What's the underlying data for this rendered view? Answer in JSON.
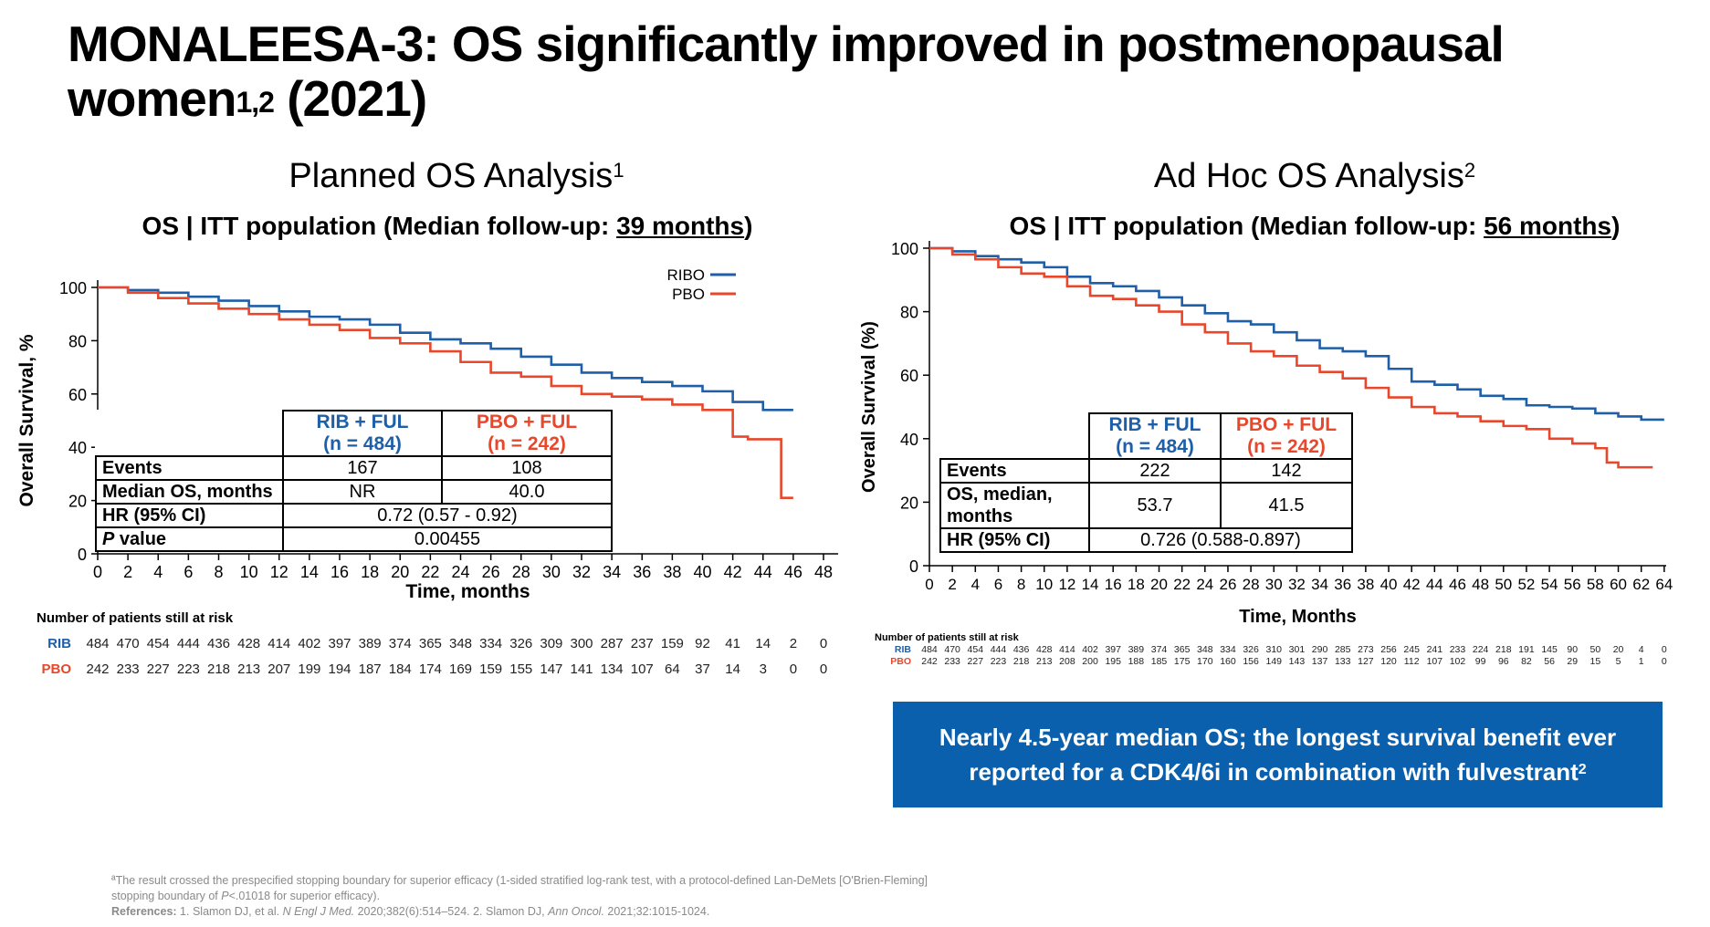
{
  "slide": {
    "title_main": "MONALEESA-3: OS significantly improved in postmenopausal women",
    "title_sup": "1,2",
    "title_tail": " (2021)"
  },
  "left_panel": {
    "title": "Planned OS Analysis",
    "title_sup": "1",
    "subtitle_pre": "OS  |  ITT population (Median follow-up: ",
    "subtitle_link": "39 months",
    "subtitle_post": ")",
    "table": {
      "col1": "RIB + FUL",
      "col1_n": "(n = 484)",
      "col2": "PBO + FUL",
      "col2_n": "(n = 242)",
      "rows": [
        {
          "label": "Events",
          "v1": "167",
          "v2": "108"
        },
        {
          "label": "Median OS, months",
          "v1": "NR",
          "v2": "40.0"
        }
      ],
      "hr_label": "HR (95% CI)",
      "hr_value": "0.72 (0.57 - 0.92)",
      "p_label_italic": "P",
      "p_label_rest": " value",
      "p_value": "0.00455"
    }
  },
  "right_panel": {
    "title": "Ad Hoc OS Analysis",
    "title_sup": "2",
    "subtitle_pre": "OS  |  ITT population (Median follow-up: ",
    "subtitle_link": "56 months",
    "subtitle_post": ")",
    "table": {
      "col1": "RIB + FUL",
      "col1_n": "(n = 484)",
      "col2": "PBO + FUL",
      "col2_n": "(n = 242)",
      "events_label": "Events",
      "events_v1": "222",
      "events_v2": "142",
      "os_label_1": "OS, median,",
      "os_label_2": "months",
      "os_v1": "53.7",
      "os_v2": "41.5",
      "hr_label": "HR (95% CI)",
      "hr_value": "0.726 (0.588-0.897)"
    }
  },
  "callout": {
    "line1": "Nearly 4.5-year median OS; the longest survival benefit ever",
    "line2": "reported for a CDK4/6i in combination with fulvestrant",
    "sup": "2"
  },
  "footnotes": {
    "line1": "ªThe result crossed the prespecified stopping boundary for superior efficacy (1-sided stratified log-rank test, with a protocol-defined Lan-DeMets [O'Brien-Fleming]",
    "line2_pre": "stopping boundary of ",
    "line2_italic": "P",
    "line2_post": "<.01018 for superior efficacy).",
    "ref_label": "References:",
    "ref1_pre": " 1. Slamon DJ, et al. ",
    "ref1_journal": "N Engl J Med.",
    "ref1_post": " 2020;382(6):514–524. 2. Slamon DJ, ",
    "ref2_journal": "Ann Oncol.",
    "ref2_post": " 2021;32:1015-1024."
  },
  "colors": {
    "ribo": "#1f5fa8",
    "pbo": "#e8472b",
    "callout_bg": "#0a60ad"
  },
  "chart_data": [
    {
      "type": "line",
      "name": "planned-os",
      "xlabel": "Time, months",
      "ylabel": "Overall Survival, %",
      "xlim": [
        0,
        48
      ],
      "ylim": [
        0,
        100
      ],
      "xticks": [
        0,
        2,
        4,
        6,
        8,
        10,
        12,
        14,
        16,
        18,
        20,
        22,
        24,
        26,
        28,
        30,
        32,
        34,
        36,
        38,
        40,
        42,
        44,
        46,
        48
      ],
      "yticks": [
        0,
        20,
        40,
        60,
        80,
        100
      ],
      "legend": [
        "RIBO",
        "PBO"
      ],
      "series": [
        {
          "name": "RIBO",
          "x": [
            0,
            2,
            4,
            6,
            8,
            10,
            12,
            14,
            16,
            18,
            20,
            22,
            24,
            26,
            28,
            30,
            32,
            34,
            36,
            38,
            40,
            42,
            44,
            46
          ],
          "y": [
            100,
            99,
            98,
            96.5,
            95,
            93,
            91,
            89,
            88,
            86,
            83,
            80.5,
            79,
            77,
            74,
            71,
            68,
            66,
            64.5,
            63,
            61,
            57,
            54,
            54
          ]
        },
        {
          "name": "PBO",
          "x": [
            0,
            2,
            4,
            6,
            8,
            10,
            12,
            14,
            16,
            18,
            20,
            22,
            24,
            26,
            28,
            30,
            32,
            34,
            36,
            38,
            40,
            42,
            43,
            44,
            45,
            45.2,
            46
          ],
          "y": [
            100,
            98,
            96,
            94,
            92,
            90,
            88,
            86,
            84,
            81,
            79,
            76,
            72,
            68,
            66.5,
            63,
            60,
            59,
            58,
            56,
            54,
            44,
            43,
            43,
            43,
            21,
            21
          ]
        }
      ],
      "risk_table": {
        "title": "Number of patients still at risk",
        "rows": [
          {
            "label": "RIB",
            "values": [
              "484",
              "470",
              "454",
              "444",
              "436",
              "428",
              "414",
              "402",
              "397",
              "389",
              "374",
              "365",
              "348",
              "334",
              "326",
              "309",
              "300",
              "287",
              "237",
              "159",
              "92",
              "41",
              "14",
              "2",
              "0"
            ]
          },
          {
            "label": "PBO",
            "values": [
              "242",
              "233",
              "227",
              "223",
              "218",
              "213",
              "207",
              "199",
              "194",
              "187",
              "184",
              "174",
              "169",
              "159",
              "155",
              "147",
              "141",
              "134",
              "107",
              "64",
              "37",
              "14",
              "3",
              "0",
              "0"
            ]
          }
        ]
      }
    },
    {
      "type": "line",
      "name": "adhoc-os",
      "xlabel": "Time, Months",
      "ylabel": "Overall Survival (%)",
      "xlim": [
        0,
        66
      ],
      "ylim": [
        0,
        100
      ],
      "xticks": [
        0,
        2,
        4,
        6,
        8,
        10,
        12,
        14,
        16,
        18,
        20,
        22,
        24,
        26,
        28,
        30,
        32,
        34,
        36,
        38,
        40,
        42,
        44,
        46,
        48,
        50,
        52,
        54,
        56,
        58,
        60,
        62,
        64
      ],
      "yticks": [
        0,
        20,
        40,
        60,
        80,
        100
      ],
      "series": [
        {
          "name": "RIB + FUL",
          "x": [
            0,
            2,
            4,
            6,
            8,
            10,
            12,
            14,
            16,
            18,
            20,
            22,
            24,
            26,
            28,
            30,
            32,
            34,
            36,
            38,
            40,
            42,
            44,
            46,
            48,
            50,
            52,
            54,
            56,
            58,
            60,
            62,
            64
          ],
          "y": [
            100,
            99,
            97.5,
            96.5,
            95.5,
            94,
            91,
            89,
            88,
            86.5,
            84.5,
            82,
            79.5,
            77,
            76,
            73.5,
            71,
            68.5,
            67.5,
            66,
            62,
            58,
            57,
            55.5,
            53.5,
            52.5,
            50.5,
            50,
            49.5,
            48,
            47,
            46,
            46
          ]
        },
        {
          "name": "PBO + FUL",
          "x": [
            0,
            2,
            4,
            6,
            8,
            10,
            12,
            14,
            16,
            18,
            20,
            22,
            24,
            26,
            28,
            30,
            32,
            34,
            36,
            38,
            40,
            42,
            44,
            46,
            48,
            50,
            52,
            54,
            56,
            58,
            59,
            60,
            62,
            63
          ],
          "y": [
            100,
            98,
            96.5,
            94,
            92,
            91,
            88,
            85,
            84,
            82,
            80,
            76,
            73.5,
            70,
            67.5,
            66,
            63,
            61,
            59,
            56,
            53,
            50,
            48,
            47,
            45.5,
            44,
            43,
            40,
            38.5,
            37,
            32.5,
            31,
            31,
            31
          ]
        }
      ],
      "risk_table": {
        "title": "Number of patients still at risk",
        "rows": [
          {
            "label": "RIB",
            "values": [
              "484",
              "470",
              "454",
              "444",
              "436",
              "428",
              "414",
              "402",
              "397",
              "389",
              "374",
              "365",
              "348",
              "334",
              "326",
              "310",
              "301",
              "290",
              "285",
              "273",
              "256",
              "245",
              "241",
              "233",
              "224",
              "218",
              "191",
              "145",
              "90",
              "50",
              "20",
              "4",
              "0"
            ]
          },
          {
            "label": "PBO",
            "values": [
              "242",
              "233",
              "227",
              "223",
              "218",
              "213",
              "208",
              "200",
              "195",
              "188",
              "185",
              "175",
              "170",
              "160",
              "156",
              "149",
              "143",
              "137",
              "133",
              "127",
              "120",
              "112",
              "107",
              "102",
              "99",
              "96",
              "82",
              "56",
              "29",
              "15",
              "5",
              "1",
              "0"
            ]
          }
        ]
      }
    }
  ]
}
